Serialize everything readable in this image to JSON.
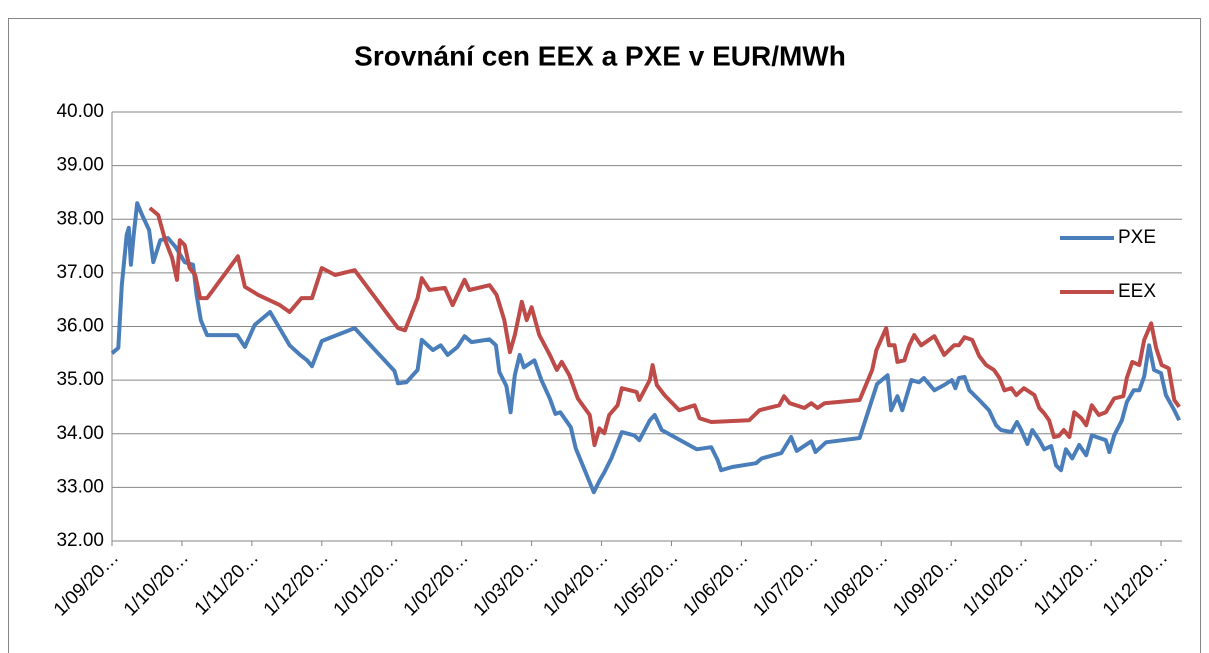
{
  "chart_data": {
    "type": "line",
    "title": "Srovnání cen EEX a PXE v EUR/MWh",
    "xlim": [
      0,
      15.3
    ],
    "xticks": [
      {
        "value": 0,
        "label": "1/09/20…"
      },
      {
        "value": 1,
        "label": "1/10/20…"
      },
      {
        "value": 2,
        "label": "1/11/20…"
      },
      {
        "value": 3,
        "label": "1/12/20…"
      },
      {
        "value": 4,
        "label": "1/01/20…"
      },
      {
        "value": 5,
        "label": "1/02/20…"
      },
      {
        "value": 6,
        "label": "1/03/20…"
      },
      {
        "value": 7,
        "label": "1/04/20…"
      },
      {
        "value": 8,
        "label": "1/05/20…"
      },
      {
        "value": 9,
        "label": "1/06/20…"
      },
      {
        "value": 10,
        "label": "1/07/20…"
      },
      {
        "value": 11,
        "label": "1/08/20…"
      },
      {
        "value": 12,
        "label": "1/09/20…"
      },
      {
        "value": 13,
        "label": "1/10/20…"
      },
      {
        "value": 14,
        "label": "1/11/20…"
      },
      {
        "value": 15,
        "label": "1/12/20…"
      }
    ],
    "ylim": [
      32,
      40
    ],
    "yticks": [
      {
        "value": 32,
        "label": "32.00"
      },
      {
        "value": 33,
        "label": "33.00"
      },
      {
        "value": 34,
        "label": "34.00"
      },
      {
        "value": 35,
        "label": "35.00"
      },
      {
        "value": 36,
        "label": "36.00"
      },
      {
        "value": 37,
        "label": "37.00"
      },
      {
        "value": 38,
        "label": "38.00"
      },
      {
        "value": 39,
        "label": "39.00"
      },
      {
        "value": 40,
        "label": "40.00"
      }
    ],
    "grid": true,
    "legend": "right",
    "series": [
      {
        "name": "PXE",
        "color": "#4a7ebb",
        "x": [
          0,
          0.09,
          0.14,
          0.21,
          0.24,
          0.27,
          0.31,
          0.36,
          0.43,
          0.53,
          0.59,
          0.69,
          0.8,
          0.91,
          1.04,
          1.16,
          1.21,
          1.27,
          1.36,
          1.79,
          1.9,
          2.04,
          2.26,
          2.54,
          2.69,
          2.79,
          2.86,
          3.0,
          3.47,
          4.04,
          4.09,
          4.21,
          4.37,
          4.43,
          4.59,
          4.7,
          4.8,
          4.94,
          5.04,
          5.14,
          5.4,
          5.49,
          5.54,
          5.64,
          5.7,
          5.76,
          5.83,
          5.89,
          6.04,
          6.14,
          6.26,
          6.34,
          6.41,
          6.56,
          6.63,
          6.89,
          6.97,
          7.04,
          7.14,
          7.29,
          7.47,
          7.54,
          7.69,
          7.76,
          7.86,
          8.36,
          8.57,
          8.66,
          8.71,
          8.87,
          9.21,
          9.29,
          9.57,
          9.64,
          9.71,
          9.79,
          10.0,
          10.06,
          10.21,
          10.69,
          10.94,
          11.09,
          11.14,
          11.23,
          11.3,
          11.43,
          11.54,
          11.61,
          11.76,
          11.9,
          12.01,
          12.06,
          12.11,
          12.19,
          12.26,
          12.4,
          12.54,
          12.64,
          12.71,
          12.86,
          12.94,
          13.0,
          13.09,
          13.16,
          13.26,
          13.33,
          13.43,
          13.5,
          13.57,
          13.64,
          13.73,
          13.83,
          13.93,
          14.01,
          14.21,
          14.26,
          14.33,
          14.44,
          14.51,
          14.61,
          14.69,
          14.76,
          14.83,
          14.9,
          15.0,
          15.07,
          15.19,
          15.26
        ],
        "values": [
          35.5,
          35.6,
          36.77,
          37.71,
          37.84,
          37.15,
          37.71,
          38.3,
          38.08,
          37.8,
          37.2,
          37.61,
          37.65,
          37.48,
          37.2,
          37.15,
          36.59,
          36.12,
          35.84,
          35.84,
          35.62,
          36.03,
          36.27,
          35.65,
          35.47,
          35.37,
          35.26,
          35.73,
          35.97,
          35.17,
          34.94,
          34.96,
          35.19,
          35.75,
          35.56,
          35.65,
          35.47,
          35.62,
          35.82,
          35.71,
          35.76,
          35.65,
          35.15,
          34.89,
          34.4,
          35.09,
          35.47,
          35.24,
          35.37,
          35.0,
          34.66,
          34.37,
          34.4,
          34.12,
          33.73,
          32.91,
          33.12,
          33.28,
          33.54,
          34.03,
          33.97,
          33.88,
          34.25,
          34.35,
          34.07,
          33.71,
          33.75,
          33.51,
          33.32,
          33.38,
          33.45,
          33.54,
          33.64,
          33.79,
          33.94,
          33.68,
          33.86,
          33.66,
          33.84,
          33.92,
          34.93,
          35.09,
          34.44,
          34.7,
          34.44,
          35.0,
          34.96,
          35.04,
          34.81,
          34.91,
          35.0,
          34.85,
          35.04,
          35.06,
          34.81,
          34.63,
          34.44,
          34.16,
          34.07,
          34.03,
          34.22,
          34.07,
          33.81,
          34.07,
          33.88,
          33.71,
          33.77,
          33.41,
          33.32,
          33.71,
          33.54,
          33.79,
          33.6,
          33.97,
          33.88,
          33.66,
          33.97,
          34.25,
          34.59,
          34.81,
          34.81,
          35.07,
          35.65,
          35.19,
          35.13,
          34.72,
          34.44,
          34.25
        ]
      },
      {
        "name": "EEX",
        "color": "#be4b48",
        "x": [
          0.54,
          0.66,
          0.76,
          0.86,
          0.93,
          0.97,
          1.04,
          1.11,
          1.19,
          1.26,
          1.36,
          1.8,
          1.9,
          2.09,
          2.4,
          2.54,
          2.71,
          2.86,
          3.0,
          3.19,
          3.47,
          4.09,
          4.19,
          4.37,
          4.43,
          4.54,
          4.76,
          4.87,
          5.04,
          5.11,
          5.4,
          5.5,
          5.61,
          5.69,
          5.76,
          5.86,
          5.93,
          6.0,
          6.11,
          6.26,
          6.36,
          6.43,
          6.54,
          6.66,
          6.83,
          6.9,
          6.97,
          7.04,
          7.11,
          7.23,
          7.29,
          7.5,
          7.54,
          7.69,
          7.73,
          7.79,
          7.9,
          8.11,
          8.33,
          8.4,
          8.57,
          9.11,
          9.26,
          9.54,
          9.61,
          9.69,
          9.9,
          10.0,
          10.09,
          10.19,
          10.69,
          10.79,
          10.87,
          10.93,
          11.07,
          11.11,
          11.19,
          11.23,
          11.33,
          11.4,
          11.47,
          11.57,
          11.76,
          11.9,
          12.04,
          12.11,
          12.19,
          12.3,
          12.4,
          12.5,
          12.61,
          12.69,
          12.76,
          12.86,
          12.93,
          13.04,
          13.19,
          13.26,
          13.33,
          13.4,
          13.47,
          13.54,
          13.61,
          13.69,
          13.76,
          13.86,
          13.93,
          14.01,
          14.11,
          14.21,
          14.33,
          14.46,
          14.51,
          14.59,
          14.69,
          14.76,
          14.86,
          14.93,
          15.01,
          15.11,
          15.19,
          15.26
        ],
        "values": [
          38.21,
          38.08,
          37.61,
          37.28,
          36.87,
          37.61,
          37.52,
          37.09,
          36.96,
          36.53,
          36.53,
          37.31,
          36.74,
          36.59,
          36.4,
          36.27,
          36.53,
          36.53,
          37.09,
          36.96,
          37.05,
          35.97,
          35.93,
          36.53,
          36.9,
          36.68,
          36.72,
          36.4,
          36.87,
          36.68,
          36.77,
          36.59,
          36.12,
          35.52,
          35.84,
          36.46,
          36.12,
          36.36,
          35.84,
          35.47,
          35.19,
          35.34,
          35.09,
          34.66,
          34.35,
          33.79,
          34.1,
          34.01,
          34.35,
          34.53,
          34.85,
          34.78,
          34.63,
          35.0,
          35.28,
          34.91,
          34.72,
          34.44,
          34.53,
          34.29,
          34.22,
          34.25,
          34.44,
          34.53,
          34.7,
          34.57,
          34.48,
          34.57,
          34.48,
          34.57,
          34.63,
          34.94,
          35.19,
          35.56,
          35.97,
          35.65,
          35.65,
          35.34,
          35.37,
          35.65,
          35.84,
          35.65,
          35.82,
          35.47,
          35.65,
          35.65,
          35.8,
          35.75,
          35.45,
          35.28,
          35.19,
          35.04,
          34.81,
          34.85,
          34.72,
          34.85,
          34.72,
          34.48,
          34.38,
          34.25,
          33.94,
          33.96,
          34.07,
          33.94,
          34.4,
          34.29,
          34.16,
          34.53,
          34.35,
          34.4,
          34.66,
          34.7,
          35.04,
          35.34,
          35.28,
          35.75,
          36.06,
          35.6,
          35.28,
          35.22,
          34.63,
          34.5
        ]
      }
    ]
  }
}
